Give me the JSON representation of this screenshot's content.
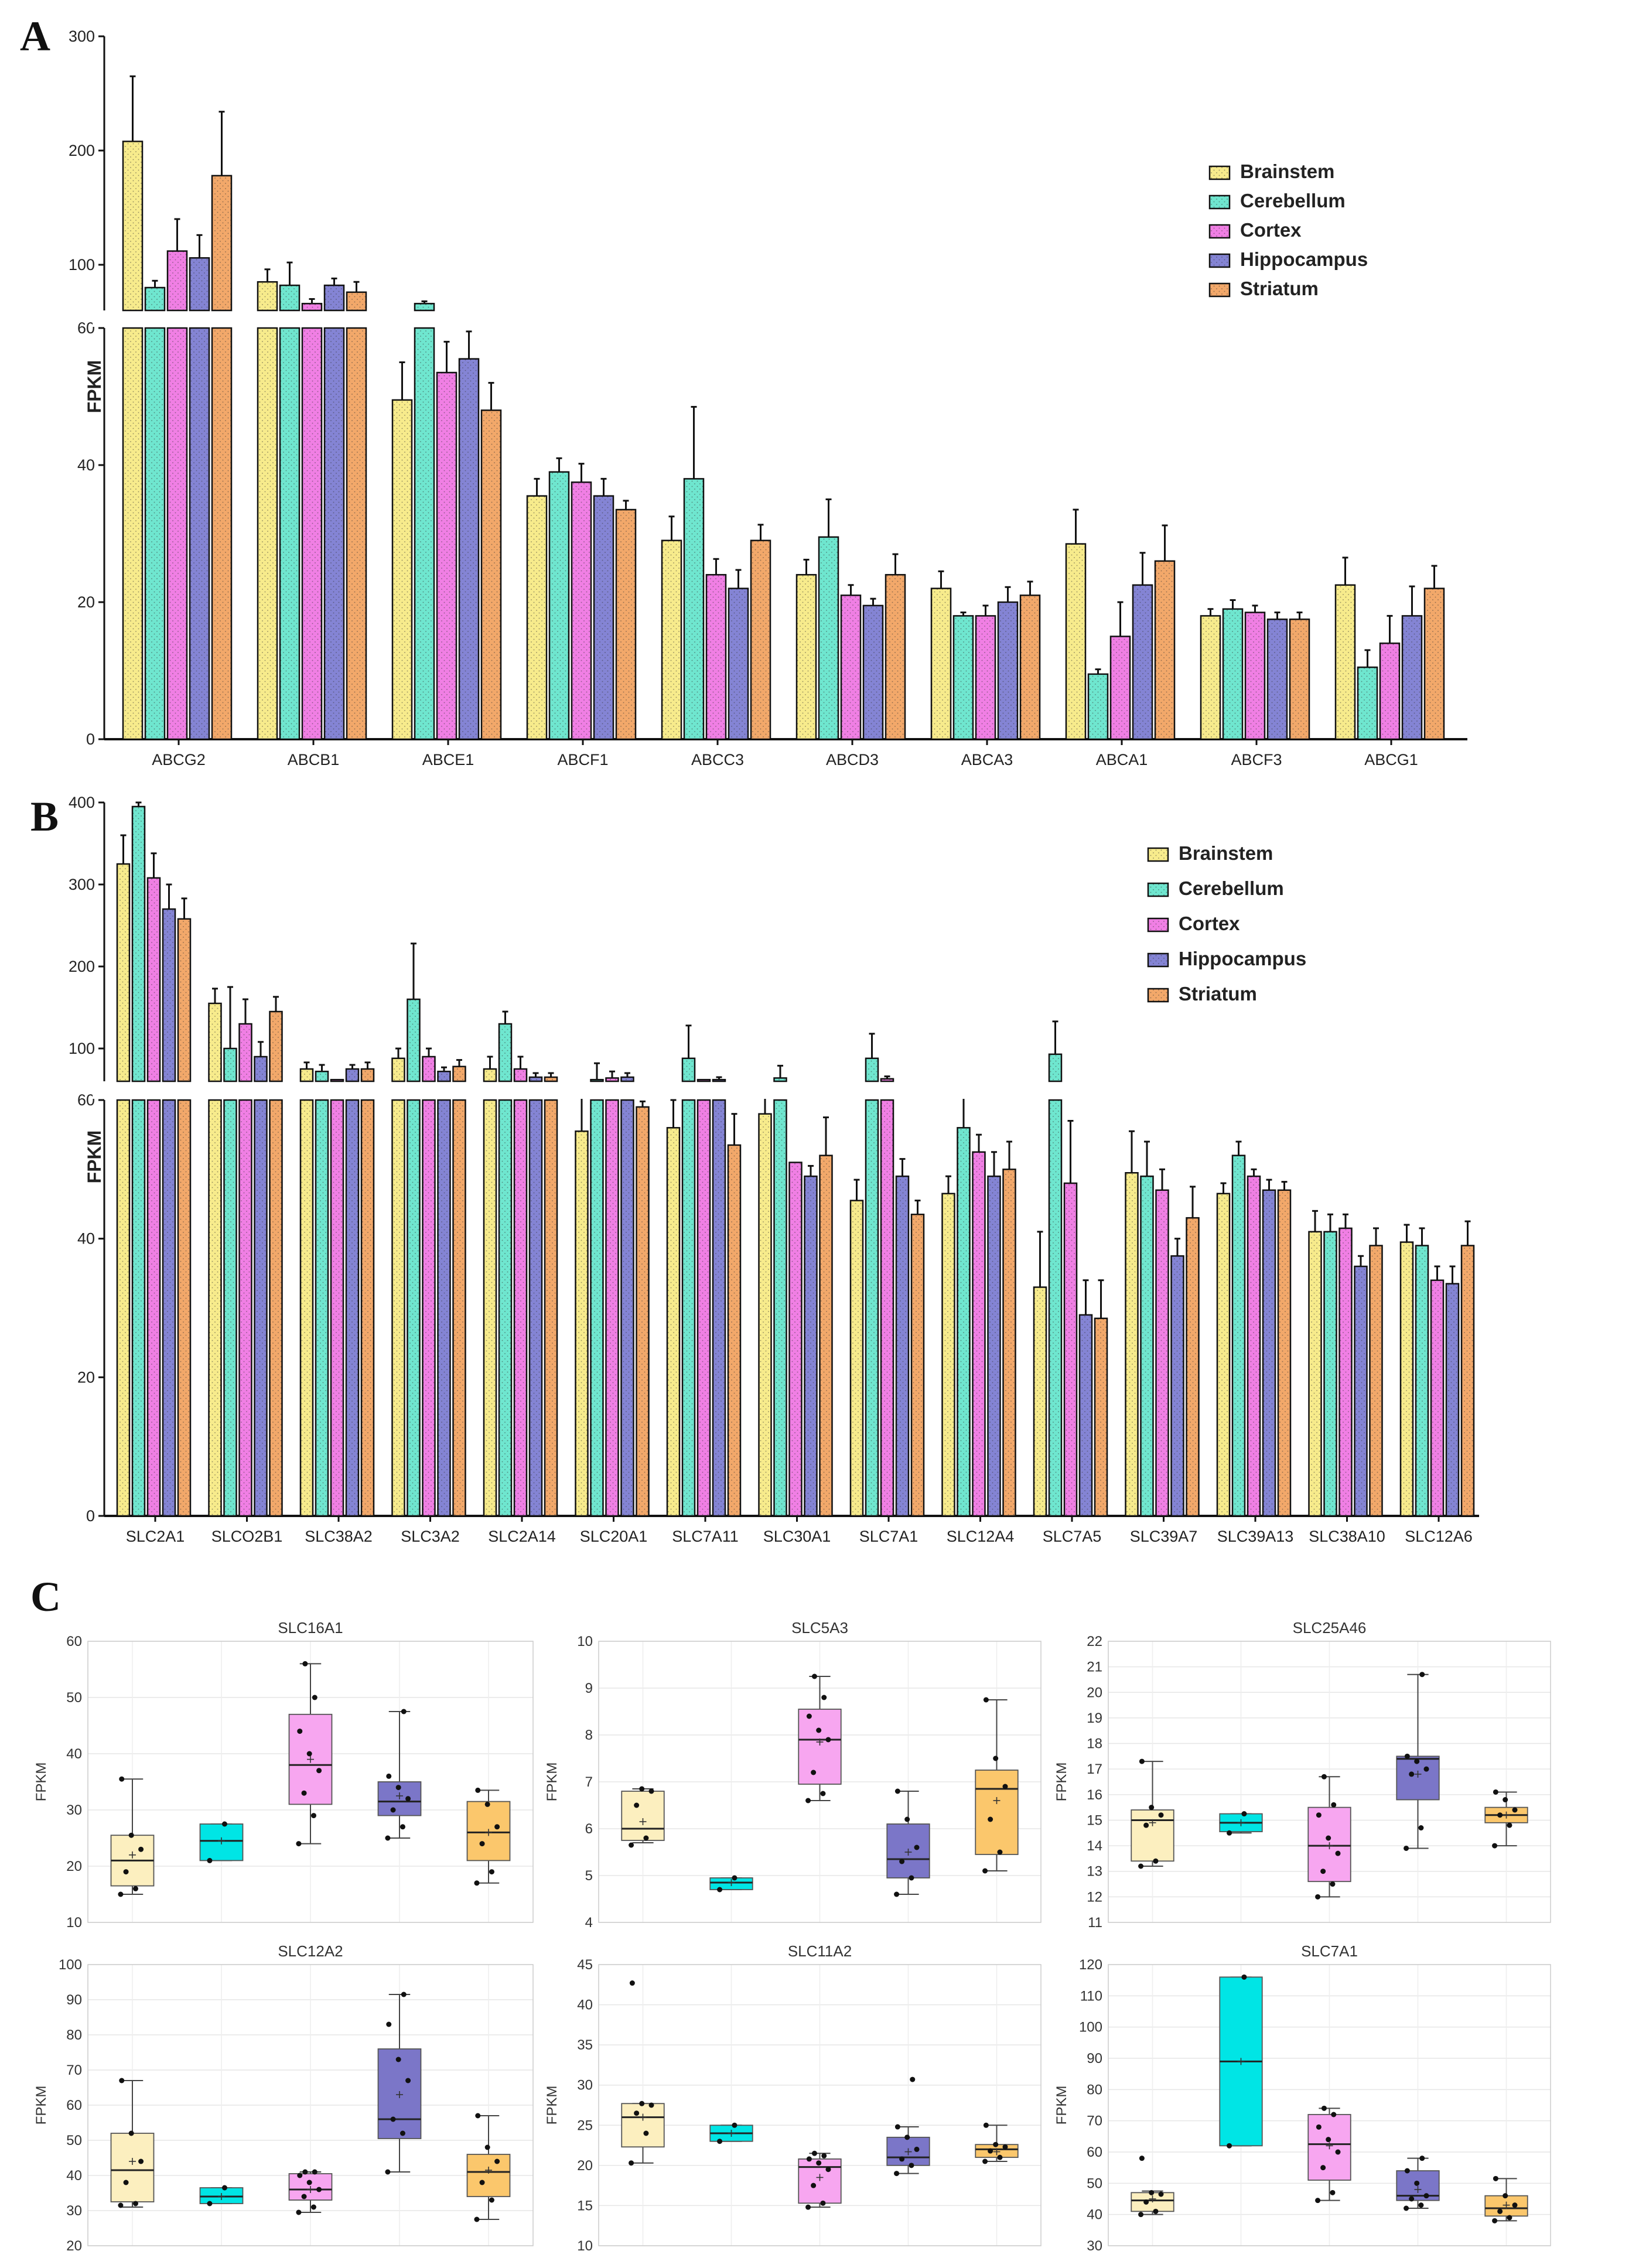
{
  "colors": {
    "Brainstem": "#f7eb8c",
    "Cerebellum": "#6fe6cf",
    "Cortex": "#f07fe4",
    "Hippocampus": "#8484d4",
    "Striatum": "#f2a86a"
  },
  "box_colors": {
    "Brainstem": "#fcefbf",
    "Cerebellum": "#00e5e5",
    "Cortex": "#f7a6f0",
    "Hippocampus": "#7b76c8",
    "Striatum": "#fbc76c"
  },
  "panel_labels": {
    "a": "A",
    "b": "B",
    "c": "C"
  },
  "chart_data": [
    {
      "panel": "A",
      "type": "bar",
      "ylabel": "FPKM",
      "axis_break": [
        60,
        60
      ],
      "ylim_lower": [
        0,
        60
      ],
      "ylim_upper": [
        60,
        300
      ],
      "yticks_lower": [
        "0",
        "20",
        "40",
        "60"
      ],
      "yticks_upper": [
        "100",
        "200",
        "300"
      ],
      "legend_position": "top-right",
      "categories": [
        "ABCG2",
        "ABCB1",
        "ABCE1",
        "ABCF1",
        "ABCC3",
        "ABCD3",
        "ABCA3",
        "ABCA1",
        "ABCF3",
        "ABCG1"
      ],
      "series": [
        {
          "name": "Brainstem",
          "values": [
            208,
            85,
            49.5,
            35.5,
            29,
            24,
            22,
            28.5,
            18,
            22.5
          ],
          "errors": [
            57,
            11,
            5.5,
            2.5,
            3.5,
            2.2,
            2.5,
            5,
            1,
            4
          ]
        },
        {
          "name": "Cerebellum",
          "values": [
            80,
            82,
            66,
            39,
            38,
            29.5,
            18,
            9.5,
            19,
            10.5
          ],
          "errors": [
            6,
            20,
            2,
            2,
            10.5,
            5.5,
            0.5,
            0.7,
            1.3,
            2.5
          ]
        },
        {
          "name": "Cortex",
          "values": [
            112,
            66,
            53.5,
            37.5,
            24,
            21,
            18,
            15,
            18.5,
            14
          ],
          "errors": [
            28,
            4,
            4.5,
            2.7,
            2.3,
            1.5,
            1.5,
            5,
            1,
            4
          ]
        },
        {
          "name": "Hippocampus",
          "values": [
            106,
            82,
            55.5,
            35.5,
            22,
            19.5,
            20,
            22.5,
            17.5,
            18
          ],
          "errors": [
            20,
            6,
            4,
            2.5,
            2.7,
            1,
            2.2,
            4.7,
            1,
            4.3
          ]
        },
        {
          "name": "Striatum",
          "values": [
            178,
            76,
            48,
            33.5,
            29,
            24,
            21,
            26,
            17.5,
            22
          ],
          "errors": [
            56,
            9,
            4,
            1.3,
            2.3,
            3,
            2,
            5.2,
            1,
            3.3
          ]
        }
      ]
    },
    {
      "panel": "B",
      "type": "bar",
      "ylabel": "FPKM",
      "axis_break": [
        60,
        60
      ],
      "ylim_lower": [
        0,
        60
      ],
      "ylim_upper": [
        60,
        400
      ],
      "yticks_lower": [
        "0",
        "20",
        "40",
        "60"
      ],
      "yticks_upper": [
        "100",
        "200",
        "300",
        "400"
      ],
      "legend_position": "top-right",
      "categories": [
        "SLC2A1",
        "SLCO2B1",
        "SLC38A2",
        "SLC3A2",
        "SLC2A14",
        "SLC20A1",
        "SLC7A11",
        "SLC30A1",
        "SLC7A1",
        "SLC12A4",
        "SLC7A5",
        "SLC39A7",
        "SLC39A13",
        "SLC38A10",
        "SLC12A6"
      ],
      "series": [
        {
          "name": "Brainstem",
          "values": [
            325,
            155,
            75,
            88,
            75,
            55.5,
            56,
            58,
            45.5,
            46.5,
            33,
            49.5,
            46.5,
            41,
            39.5
          ],
          "errors": [
            35,
            18,
            8,
            12,
            15,
            5,
            4,
            2.5,
            3,
            2.5,
            8,
            6,
            1.5,
            3,
            2.5
          ]
        },
        {
          "name": "Cerebellum",
          "values": [
            395,
            100,
            72,
            160,
            130,
            62,
            88,
            64,
            88,
            56,
            93,
            49,
            52,
            41,
            39
          ],
          "errors": [
            5,
            75,
            8,
            68,
            15,
            20,
            40,
            15,
            30,
            8,
            40,
            5,
            2,
            2.5,
            2.5
          ]
        },
        {
          "name": "Cortex",
          "values": [
            308,
            130,
            62,
            90,
            75,
            64,
            62,
            51,
            63,
            52.5,
            48,
            47,
            49,
            41.5,
            34
          ]
        },
        {
          "name": "Hippocampus",
          "values": [
            270,
            90,
            75,
            72,
            65,
            65,
            62,
            49,
            49,
            49,
            29,
            37.5,
            47,
            36,
            33.5
          ],
          "errors": [
            30,
            18,
            5,
            5,
            5,
            5,
            3,
            1.5,
            2.5,
            3.5,
            5,
            2.5,
            1.5,
            1.5,
            2.5
          ]
        },
        {
          "name": "Striatum",
          "values": [
            258,
            145,
            75,
            78,
            65,
            59,
            53.5,
            52,
            43.5,
            50,
            28.5,
            43,
            47,
            39,
            39
          ],
          "errors": [
            25,
            18,
            8,
            8,
            5,
            0.8,
            4.5,
            5.5,
            2,
            4,
            5.5,
            4.5,
            1.2,
            2.5,
            3.5
          ]
        }
      ],
      "cortex_errors": [
        30,
        30,
        0,
        10,
        15,
        8,
        0,
        0,
        3,
        2.5,
        9,
        3,
        1,
        2,
        2
      ]
    },
    {
      "panel": "C",
      "type": "box",
      "ylabel": "FPKM",
      "groups": [
        "Brainstem",
        "Cerebellum",
        "Cortex",
        "Hippocampus",
        "Striatum"
      ],
      "plots": [
        {
          "title": "SLC16A1",
          "ylim": [
            10,
            60
          ],
          "yticks": [
            "10",
            "20",
            "30",
            "40",
            "50",
            "60"
          ],
          "boxes": [
            {
              "min": 15,
              "q1": 16.5,
              "median": 21,
              "q3": 25.5,
              "max": 35.5,
              "mean": 22,
              "points": [
                15,
                16,
                19,
                23,
                25.5,
                35.5
              ]
            },
            {
              "min": 21,
              "q1": 21,
              "median": 24.5,
              "q3": 27.5,
              "max": 27.5,
              "mean": 24.5,
              "points": [
                21,
                27.5
              ]
            },
            {
              "min": 24,
              "q1": 31,
              "median": 38,
              "q3": 47,
              "max": 56,
              "mean": 39,
              "points": [
                24,
                29,
                33,
                37,
                40,
                44,
                50,
                56
              ]
            },
            {
              "min": 25,
              "q1": 29,
              "median": 31.5,
              "q3": 35,
              "max": 47.5,
              "mean": 32.5,
              "points": [
                25,
                27,
                30,
                32,
                34,
                36,
                47.5
              ]
            },
            {
              "min": 17,
              "q1": 21,
              "median": 26,
              "q3": 31.5,
              "max": 33.5,
              "mean": 26,
              "points": [
                17,
                19,
                24,
                27,
                31,
                33.5
              ]
            }
          ]
        },
        {
          "title": "SLC5A3",
          "ylim": [
            4,
            10
          ],
          "yticks": [
            "4",
            "5",
            "6",
            "7",
            "8",
            "9",
            "10"
          ],
          "boxes": [
            {
              "min": 5.7,
              "q1": 5.75,
              "median": 6.0,
              "q3": 6.8,
              "max": 6.85,
              "mean": 6.15,
              "points": [
                5.65,
                5.8,
                6.5,
                6.8,
                6.85
              ]
            },
            {
              "min": 4.7,
              "q1": 4.7,
              "median": 4.85,
              "q3": 4.95,
              "max": 4.95,
              "mean": 4.85,
              "points": [
                4.7,
                4.95
              ]
            },
            {
              "min": 6.6,
              "q1": 6.95,
              "median": 7.9,
              "q3": 8.55,
              "max": 9.25,
              "mean": 7.85,
              "points": [
                6.6,
                6.75,
                7.2,
                7.9,
                8.1,
                8.4,
                8.8,
                9.25
              ]
            },
            {
              "min": 4.6,
              "q1": 4.95,
              "median": 5.35,
              "q3": 6.1,
              "max": 6.8,
              "mean": 5.5,
              "points": [
                4.6,
                4.95,
                5.3,
                5.6,
                6.2,
                6.8
              ]
            },
            {
              "min": 5.1,
              "q1": 5.45,
              "median": 6.85,
              "q3": 7.25,
              "max": 8.75,
              "mean": 6.6,
              "points": [
                5.1,
                5.5,
                6.2,
                6.9,
                7.5,
                8.75
              ]
            }
          ]
        },
        {
          "title": "SLC25A46",
          "ylim": [
            11,
            22
          ],
          "yticks": [
            "11",
            "12",
            "13",
            "14",
            "15",
            "16",
            "17",
            "18",
            "19",
            "20",
            "21",
            "22"
          ],
          "boxes": [
            {
              "min": 13.2,
              "q1": 13.4,
              "median": 15.0,
              "q3": 15.4,
              "max": 17.3,
              "mean": 14.9,
              "points": [
                13.2,
                13.4,
                14.8,
                15.2,
                15.5,
                17.3
              ]
            },
            {
              "min": 14.5,
              "q1": 14.55,
              "median": 14.9,
              "q3": 15.25,
              "max": 15.25,
              "mean": 14.9,
              "points": [
                14.5,
                15.25
              ]
            },
            {
              "min": 12.0,
              "q1": 12.6,
              "median": 14.0,
              "q3": 15.5,
              "max": 16.7,
              "mean": 14.0,
              "points": [
                12.0,
                12.5,
                13.0,
                13.7,
                14.3,
                15.2,
                15.6,
                16.7
              ]
            },
            {
              "min": 13.9,
              "q1": 15.8,
              "median": 17.4,
              "q3": 17.5,
              "max": 20.7,
              "mean": 16.8,
              "points": [
                13.9,
                14.7,
                16.8,
                17.0,
                17.3,
                17.5,
                20.7
              ]
            },
            {
              "min": 14.0,
              "q1": 14.9,
              "median": 15.2,
              "q3": 15.5,
              "max": 16.1,
              "mean": 15.2,
              "points": [
                14.0,
                14.8,
                15.2,
                15.4,
                15.8,
                16.1
              ]
            }
          ]
        },
        {
          "title": "SLC12A2",
          "ylim": [
            20,
            100
          ],
          "yticks": [
            "20",
            "30",
            "40",
            "50",
            "60",
            "70",
            "80",
            "90",
            "100"
          ],
          "boxes": [
            {
              "min": 31,
              "q1": 32.5,
              "median": 41.5,
              "q3": 52,
              "max": 67,
              "mean": 44,
              "points": [
                31.5,
                32,
                38,
                44,
                52,
                67
              ]
            },
            {
              "min": 32,
              "q1": 32,
              "median": 34,
              "q3": 36.5,
              "max": 36.5,
              "mean": 34,
              "points": [
                32,
                36.5
              ]
            },
            {
              "min": 29.5,
              "q1": 33,
              "median": 36,
              "q3": 40.5,
              "max": 41,
              "mean": 36,
              "points": [
                29.5,
                31,
                34,
                36,
                38,
                40,
                41,
                41
              ]
            },
            {
              "min": 41,
              "q1": 50.5,
              "median": 56,
              "q3": 76,
              "max": 91.5,
              "mean": 63,
              "points": [
                41,
                52,
                56,
                67,
                73,
                83,
                91.5
              ]
            },
            {
              "min": 27.5,
              "q1": 34,
              "median": 41,
              "q3": 46,
              "max": 57,
              "mean": 41.5,
              "points": [
                27.5,
                33,
                38,
                44,
                48,
                57
              ]
            }
          ]
        },
        {
          "title": "SLC11A2",
          "ylim": [
            10,
            45
          ],
          "yticks": [
            "10",
            "15",
            "20",
            "25",
            "30",
            "35",
            "40",
            "45"
          ],
          "boxes": [
            {
              "min": 20.3,
              "q1": 22.3,
              "median": 26,
              "q3": 27.7,
              "max": 27.7,
              "mean": 26,
              "points": [
                20.3,
                24,
                26.5,
                27.5,
                27.7,
                42.7
              ]
            },
            {
              "min": 23,
              "q1": 23,
              "median": 24,
              "q3": 25,
              "max": 25,
              "mean": 24,
              "points": [
                23,
                25
              ]
            },
            {
              "min": 14.8,
              "q1": 15.3,
              "median": 19.8,
              "q3": 20.8,
              "max": 21.5,
              "mean": 18.5,
              "points": [
                14.8,
                15.3,
                17.5,
                19.5,
                20.3,
                20.8,
                21.2,
                21.5
              ]
            },
            {
              "min": 19,
              "q1": 20,
              "median": 21,
              "q3": 23.5,
              "max": 24.8,
              "mean": 21.7,
              "points": [
                19,
                20,
                20.8,
                22,
                23.5,
                24.8,
                30.7
              ]
            },
            {
              "min": 20.5,
              "q1": 21,
              "median": 22,
              "q3": 22.6,
              "max": 25,
              "mean": 21.7,
              "points": [
                20.5,
                21,
                21.8,
                22.3,
                22.6,
                25
              ]
            }
          ]
        },
        {
          "title": "SLC7A1",
          "ylim": [
            30,
            120
          ],
          "yticks": [
            "30",
            "40",
            "50",
            "60",
            "70",
            "80",
            "90",
            "100",
            "110",
            "120"
          ],
          "boxes": [
            {
              "min": 40,
              "q1": 41,
              "median": 44.5,
              "q3": 47,
              "max": 47.5,
              "mean": 45,
              "points": [
                40,
                41,
                44,
                46.5,
                47,
                58
              ]
            },
            {
              "min": 62,
              "q1": 62,
              "median": 89,
              "q3": 116,
              "max": 116,
              "mean": 89,
              "points": [
                62,
                116
              ]
            },
            {
              "min": 44.5,
              "q1": 51,
              "median": 62.5,
              "q3": 72,
              "max": 74,
              "mean": 62,
              "points": [
                44.5,
                47,
                55,
                60,
                64,
                68,
                72,
                74
              ]
            },
            {
              "min": 42,
              "q1": 44.5,
              "median": 46,
              "q3": 54,
              "max": 58,
              "mean": 48,
              "points": [
                42,
                43,
                45,
                46,
                50,
                54,
                58
              ]
            },
            {
              "min": 38,
              "q1": 39.5,
              "median": 42,
              "q3": 46,
              "max": 51.5,
              "mean": 43,
              "points": [
                38,
                39,
                41,
                43,
                46,
                51.5
              ]
            }
          ]
        }
      ]
    }
  ]
}
